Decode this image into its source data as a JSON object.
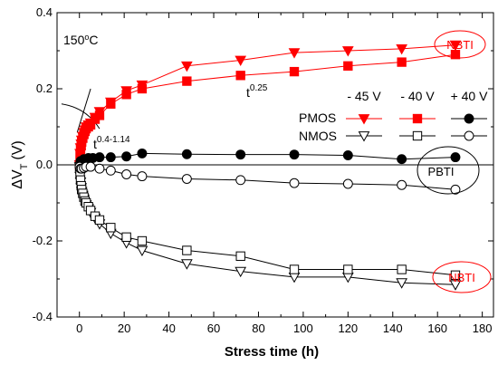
{
  "chart_data": {
    "type": "scatter",
    "xlabel": "Stress time (h)",
    "ylabel": "ΔV",
    "ylabel_sub": "T",
    "ylabel_unit": "(V)",
    "xlim": [
      -10,
      185
    ],
    "ylim": [
      -0.4,
      0.4
    ],
    "x_ticks": [
      0,
      20,
      40,
      60,
      80,
      100,
      120,
      140,
      160,
      180
    ],
    "y_ticks": [
      -0.4,
      -0.2,
      0.0,
      0.2,
      0.4
    ],
    "y_tick_labels": [
      "-0.4",
      "-0.2",
      "0.0",
      "0.2",
      "0.4"
    ],
    "x_minor_step": 10,
    "y_minor_step": 0.1,
    "temperature_label": "150",
    "temperature_unit": "C",
    "legend": {
      "columns": [
        "- 45 V",
        "- 40 V",
        "+ 40 V"
      ],
      "rows": [
        "PMOS",
        "NMOS"
      ]
    },
    "annotations": {
      "nbti_top": "NBTI",
      "nbti_bottom": "NBTI",
      "pbti": "PBTI",
      "slope_early_base": "t",
      "slope_early_exp": "0.4-1.14",
      "slope_late_base": "t",
      "slope_late_exp": "0.25"
    },
    "series": [
      {
        "name": "PMOS - 45 V",
        "color": "#ff0000",
        "marker": "triangle-down-filled",
        "x": [
          0.1,
          0.3,
          0.5,
          0.8,
          1,
          1.5,
          2,
          2.5,
          3,
          4,
          5,
          7,
          9,
          14,
          21,
          28,
          48,
          72,
          96,
          120,
          144,
          168
        ],
        "y": [
          0.0,
          0.03,
          0.045,
          0.055,
          0.065,
          0.075,
          0.085,
          0.092,
          0.1,
          0.105,
          0.11,
          0.125,
          0.14,
          0.165,
          0.195,
          0.21,
          0.26,
          0.275,
          0.295,
          0.3,
          0.305,
          0.315
        ]
      },
      {
        "name": "PMOS - 40 V",
        "color": "#ff0000",
        "marker": "square-filled",
        "x": [
          0.1,
          0.3,
          0.5,
          0.8,
          1,
          1.5,
          2,
          2.5,
          3,
          4,
          5,
          7,
          9,
          14,
          21,
          28,
          48,
          72,
          96,
          120,
          144,
          168
        ],
        "y": [
          0.0,
          0.025,
          0.04,
          0.05,
          0.06,
          0.07,
          0.08,
          0.088,
          0.095,
          0.1,
          0.105,
          0.12,
          0.13,
          0.16,
          0.185,
          0.2,
          0.22,
          0.235,
          0.245,
          0.26,
          0.27,
          0.29
        ]
      },
      {
        "name": "PMOS + 40 V",
        "color": "#000000",
        "marker": "circle-filled",
        "x": [
          0.5,
          2,
          4,
          6,
          9,
          14,
          21,
          28,
          48,
          72,
          96,
          120,
          144,
          168
        ],
        "y": [
          0.01,
          0.015,
          0.018,
          0.018,
          0.02,
          0.02,
          0.022,
          0.03,
          0.028,
          0.027,
          0.027,
          0.025,
          0.015,
          0.02
        ]
      },
      {
        "name": "NMOS - 45 V",
        "color": "#000000",
        "marker": "triangle-down-open",
        "x": [
          0.1,
          0.3,
          0.5,
          0.8,
          1,
          1.5,
          2,
          2.5,
          3,
          4,
          5,
          7,
          9,
          14,
          21,
          28,
          48,
          72,
          96,
          120,
          144,
          168
        ],
        "y": [
          -0.005,
          -0.03,
          -0.045,
          -0.06,
          -0.07,
          -0.08,
          -0.09,
          -0.1,
          -0.105,
          -0.115,
          -0.125,
          -0.14,
          -0.155,
          -0.18,
          -0.205,
          -0.225,
          -0.26,
          -0.28,
          -0.295,
          -0.295,
          -0.31,
          -0.315
        ]
      },
      {
        "name": "NMOS - 40 V",
        "color": "#000000",
        "marker": "square-open",
        "x": [
          0.1,
          0.3,
          0.5,
          0.8,
          1,
          1.5,
          2,
          2.5,
          3,
          4,
          5,
          7,
          9,
          14,
          21,
          28,
          48,
          72,
          96,
          120,
          144,
          168
        ],
        "y": [
          -0.005,
          -0.025,
          -0.04,
          -0.055,
          -0.065,
          -0.075,
          -0.085,
          -0.095,
          -0.1,
          -0.11,
          -0.12,
          -0.135,
          -0.145,
          -0.165,
          -0.19,
          -0.2,
          -0.225,
          -0.24,
          -0.275,
          -0.275,
          -0.275,
          -0.29
        ]
      },
      {
        "name": "NMOS + 40 V",
        "color": "#000000",
        "marker": "circle-open",
        "x": [
          0.1,
          0.5,
          1,
          2,
          3,
          5,
          9,
          14,
          21,
          28,
          48,
          72,
          96,
          120,
          144,
          168
        ],
        "y": [
          -0.005,
          -0.01,
          -0.01,
          -0.008,
          -0.005,
          -0.005,
          -0.01,
          -0.015,
          -0.025,
          -0.03,
          -0.037,
          -0.04,
          -0.048,
          -0.05,
          -0.053,
          -0.065
        ]
      }
    ]
  }
}
